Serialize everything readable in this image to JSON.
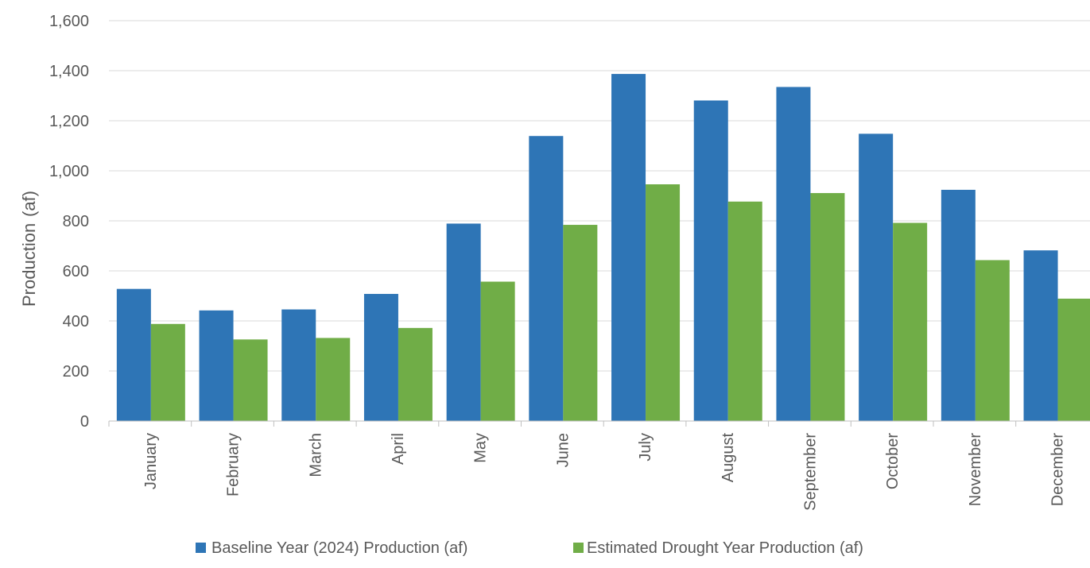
{
  "chart_data": {
    "type": "bar",
    "categories": [
      "January",
      "February",
      "March",
      "April",
      "May",
      "June",
      "July",
      "August",
      "September",
      "October",
      "November",
      "December"
    ],
    "series": [
      {
        "name": "Baseline Year (2024) Production (af)",
        "color": "#2e75b6",
        "values": [
          528,
          442,
          446,
          508,
          789,
          1139,
          1387,
          1281,
          1335,
          1148,
          924,
          682
        ]
      },
      {
        "name": "Estimated Drought Year Production (af)",
        "color": "#70ad47",
        "values": [
          388,
          326,
          332,
          372,
          557,
          784,
          946,
          877,
          911,
          792,
          643,
          489
        ]
      }
    ],
    "ylabel_parts": [
      "Production",
      "(af)"
    ],
    "ylim": [
      0,
      1600
    ],
    "yticks": [
      0,
      200,
      400,
      600,
      800,
      1000,
      1200,
      1400,
      1600
    ],
    "ytick_labels": [
      "0",
      "200",
      "400",
      "600",
      "800",
      "1,000",
      "1,200",
      "1,400",
      "1,600"
    ],
    "grid": true,
    "legend_position": "bottom"
  }
}
